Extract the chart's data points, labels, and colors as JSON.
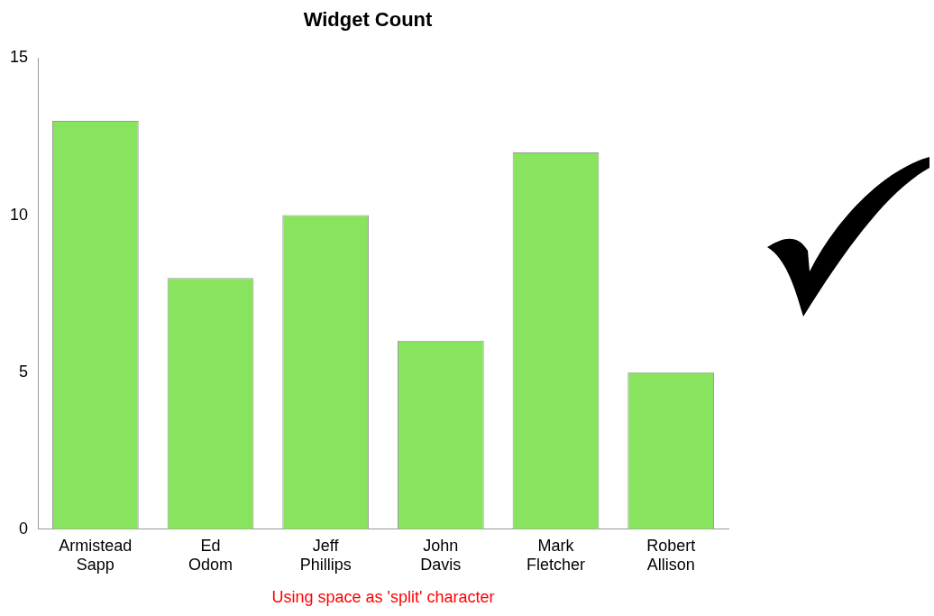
{
  "chart_data": {
    "type": "bar",
    "title": "Widget Count",
    "categories": [
      "Armistead Sapp",
      "Ed Odom",
      "Jeff Phillips",
      "John Davis",
      "Mark Fletcher",
      "Robert Allison"
    ],
    "values": [
      13,
      8,
      10,
      6,
      12,
      5
    ],
    "color": "#88e35e",
    "ylim": [
      0,
      15
    ],
    "yticks": [
      0,
      5,
      10,
      15
    ],
    "grid": false,
    "legend": false,
    "annotations": [
      "Using space as 'split' character"
    ]
  }
}
